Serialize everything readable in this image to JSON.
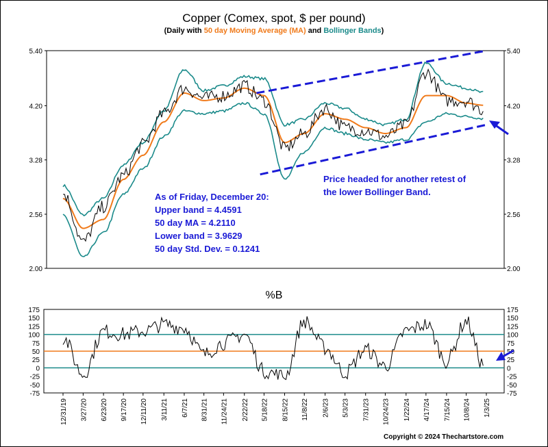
{
  "chart_data": [
    {
      "type": "line",
      "title": "Copper (Comex, spot, $ per pound)",
      "subtitle_prefix": "(Daily with ",
      "subtitle_ma": "50 day Moving Average (MA)",
      "subtitle_and": " and ",
      "subtitle_bb": "Bollinger Bands",
      "subtitle_suffix": ")",
      "ylim": [
        2.0,
        5.4
      ],
      "yscale": "log",
      "y_ticks": [
        "5.40",
        "4.20",
        "3.28",
        "2.56",
        "2.00"
      ],
      "y_tick_values": [
        5.4,
        4.2,
        3.28,
        2.56,
        2.0
      ],
      "x_ticks": [
        "12/31/19",
        "3/27/20",
        "6/23/20",
        "9/17/20",
        "12/11/20",
        "3/11/21",
        "6/7/21",
        "8/31/21",
        "11/24/21",
        "2/22/22",
        "5/18/22",
        "8/15/22",
        "11/8/22",
        "2/6/23",
        "5/3/23",
        "7/31/23",
        "10/24/23",
        "1/22/24",
        "4/17/24",
        "7/15/24",
        "10/8/24",
        "1/3/25"
      ],
      "x": [
        "2019-12-31",
        "2020-03-27",
        "2020-06-23",
        "2020-09-17",
        "2020-12-11",
        "2021-03-11",
        "2021-06-07",
        "2021-08-31",
        "2021-11-24",
        "2022-02-22",
        "2022-05-18",
        "2022-08-15",
        "2022-11-08",
        "2023-02-06",
        "2023-05-03",
        "2023-07-31",
        "2023-10-24",
        "2024-01-22",
        "2024-04-17",
        "2024-07-15",
        "2024-10-08",
        "2024-12-20"
      ],
      "series": [
        {
          "name": "Copper",
          "color": "#000000",
          "values": [
            2.82,
            2.25,
            2.65,
            3.05,
            3.52,
            4.05,
            4.55,
            4.35,
            4.4,
            4.6,
            4.3,
            3.45,
            3.7,
            4.15,
            3.8,
            3.75,
            3.65,
            3.85,
            4.9,
            4.3,
            4.3,
            4.12
          ]
        },
        {
          "name": "50 day Moving Average (MA)",
          "color": "#f07a1a",
          "values": [
            2.75,
            2.4,
            2.5,
            3.0,
            3.35,
            3.9,
            4.45,
            4.3,
            4.35,
            4.55,
            4.4,
            3.55,
            3.7,
            4.05,
            3.95,
            3.8,
            3.7,
            3.8,
            4.4,
            4.4,
            4.25,
            4.21
          ]
        },
        {
          "name": "Bollinger Bands",
          "color": "#1a8a8a",
          "values": [
            2.92,
            2.55,
            2.75,
            3.2,
            3.55,
            4.1,
            4.95,
            4.5,
            4.6,
            4.8,
            4.75,
            3.85,
            3.95,
            4.25,
            4.15,
            3.95,
            3.85,
            3.95,
            5.1,
            4.65,
            4.55,
            4.4591
          ]
        },
        {
          "name": "Lower Bollinger Band",
          "color": "#1a8a8a",
          "values": [
            2.55,
            2.1,
            2.35,
            2.8,
            3.15,
            3.65,
            4.1,
            4.05,
            4.1,
            4.25,
            4.05,
            3.0,
            3.4,
            3.8,
            3.7,
            3.6,
            3.55,
            3.6,
            3.9,
            4.05,
            4.0,
            3.9629
          ]
        }
      ],
      "channel_color": "#1a1ad6",
      "annotation_box": [
        "As of Friday, December 20:",
        "Upper band = 4.4591",
        "50 day MA = 4.2110",
        "Lower band = 3.9629",
        "50 day Std. Dev. = 0.1241"
      ],
      "annotation_right": [
        "Price headed for another retest of",
        "the lower Bollinger Band."
      ]
    },
    {
      "type": "line",
      "title": "%B",
      "ylim": [
        -75,
        175
      ],
      "y_ticks": [
        "175",
        "150",
        "125",
        "100",
        "75",
        "50",
        "25",
        "0",
        "-25",
        "-50",
        "-75"
      ],
      "y_tick_values": [
        175,
        150,
        125,
        100,
        75,
        50,
        25,
        0,
        -25,
        -50,
        -75
      ],
      "reference_lines": [
        {
          "value": 100,
          "color": "#1a8a8a"
        },
        {
          "value": 50,
          "color": "#f07a1a"
        },
        {
          "value": 0,
          "color": "#1a8a8a"
        }
      ],
      "series": [
        {
          "name": "%B",
          "color": "#000000",
          "values": [
            90,
            -20,
            110,
            100,
            110,
            130,
            120,
            40,
            75,
            100,
            -10,
            -25,
            140,
            60,
            -15,
            55,
            5,
            110,
            130,
            20,
            140,
            10
          ]
        }
      ]
    }
  ],
  "copyright": "Copyright © 2024 Thechartstore.com"
}
